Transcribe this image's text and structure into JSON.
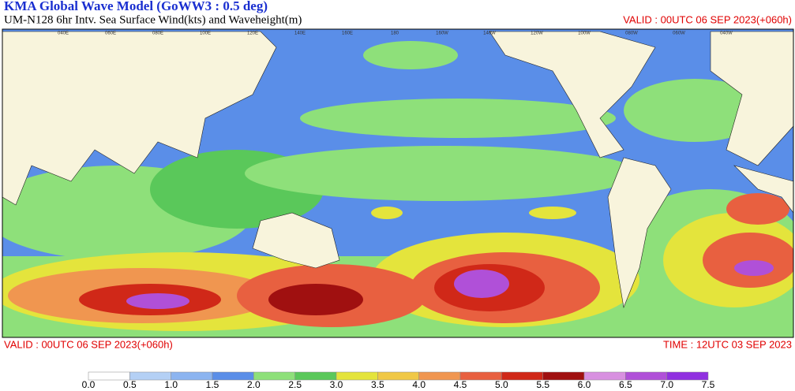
{
  "header": {
    "title": "KMA  Global Wave Model (GoWW3 : 0.5 deg)",
    "subtitle": "UM-N128  6hr Intv. Sea Surface Wind(kts) and Waveheight(m)",
    "valid_right": "VALID : 00UTC 06 SEP 2023(+060h)"
  },
  "map": {
    "lon_labels": [
      "040E",
      "060E",
      "080E",
      "100E",
      "120E",
      "140E",
      "160E",
      "180",
      "160W",
      "140W",
      "120W",
      "100W",
      "080W",
      "060W",
      "040W"
    ]
  },
  "footer": {
    "valid_left": "VALID : 00UTC 06 SEP 2023(+060h)",
    "time_right": "TIME : 12UTC 03 SEP 2023"
  },
  "legend": {
    "labels": [
      "0.0",
      "0.5",
      "1.0",
      "1.5",
      "2.0",
      "2.5",
      "3.0",
      "3.5",
      "4.0",
      "4.5",
      "5.0",
      "5.5",
      "6.0",
      "6.5",
      "7.0",
      "7.5"
    ],
    "colors": [
      "#ffffff",
      "#b4d0f5",
      "#8cb4f0",
      "#5a8ee8",
      "#8ee07a",
      "#5ac85a",
      "#e4e43c",
      "#f0c846",
      "#f09650",
      "#e86040",
      "#d02818",
      "#a01010",
      "#d890e0",
      "#b050d8",
      "#9030e0"
    ]
  }
}
